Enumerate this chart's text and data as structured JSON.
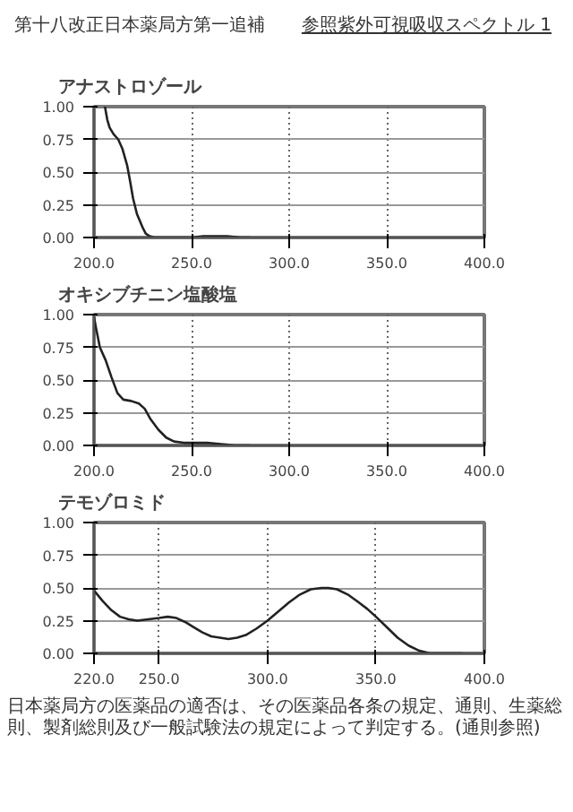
{
  "chart_data": [
    {
      "type": "line",
      "title": "アナストロゾール",
      "annotations": [
        "第十八改正日本薬局方第一追補",
        "参照紫外可視吸収スペクトル 1"
      ],
      "x": [
        205.6,
        206.8,
        208,
        210,
        212.4,
        214.5,
        217,
        218.5,
        220,
        222,
        224.8,
        226.5,
        228.5,
        231,
        240,
        250,
        256,
        262,
        268,
        275,
        280
      ],
      "series": [
        {
          "color": "#222222",
          "values": [
            1.0,
            0.9,
            0.84,
            0.79,
            0.75,
            0.68,
            0.55,
            0.43,
            0.3,
            0.18,
            0.08,
            0.03,
            0.01,
            0.0,
            0.0,
            0.0,
            0.01,
            0.01,
            0.01,
            0.0,
            0.0
          ]
        }
      ],
      "xlim": [
        200,
        400
      ],
      "ylim": [
        0,
        1
      ],
      "xticks": [
        {
          "value": 200,
          "label": "200.0"
        },
        {
          "value": 250,
          "label": "250.0"
        },
        {
          "value": 300,
          "label": "300.0"
        },
        {
          "value": 350,
          "label": "350.0"
        },
        {
          "value": 400,
          "label": "400.0"
        }
      ],
      "yticks": [
        {
          "value": 0,
          "label": "0.00"
        },
        {
          "value": 0.25,
          "label": "0.25"
        },
        {
          "value": 0.5,
          "label": "0.50"
        },
        {
          "value": 0.75,
          "label": "0.75"
        },
        {
          "value": 1,
          "label": "1.00"
        }
      ],
      "grid": true
    },
    {
      "type": "line",
      "title": "オキシブチニン塩酸塩",
      "x": [
        200,
        201,
        203,
        206,
        209,
        212,
        215,
        219,
        223,
        226,
        229,
        233,
        237,
        241,
        246,
        252,
        258,
        265,
        272,
        280
      ],
      "series": [
        {
          "color": "#222222",
          "values": [
            0.98,
            0.9,
            0.75,
            0.65,
            0.52,
            0.4,
            0.35,
            0.34,
            0.32,
            0.28,
            0.2,
            0.12,
            0.06,
            0.03,
            0.02,
            0.02,
            0.02,
            0.01,
            0.0,
            0.0
          ]
        }
      ],
      "xlim": [
        200,
        400
      ],
      "ylim": [
        0,
        1
      ],
      "xticks": [
        {
          "value": 200,
          "label": "200.0"
        },
        {
          "value": 250,
          "label": "250.0"
        },
        {
          "value": 300,
          "label": "300.0"
        },
        {
          "value": 350,
          "label": "350.0"
        },
        {
          "value": 400,
          "label": "400.0"
        }
      ],
      "yticks": [
        {
          "value": 0,
          "label": "0.00"
        },
        {
          "value": 0.25,
          "label": "0.25"
        },
        {
          "value": 0.5,
          "label": "0.50"
        },
        {
          "value": 0.75,
          "label": "0.75"
        },
        {
          "value": 1,
          "label": "1.00"
        }
      ],
      "grid": true
    },
    {
      "type": "line",
      "title": "テモゾロミド",
      "annotations": [
        "日本薬局方の医薬品の適否は、その医薬品各条の規定、通則、生薬総則、製剤総則及び一般試験法の規定によって判定する。(通則参照)"
      ],
      "x": [
        220,
        224,
        228,
        232,
        236,
        240,
        245,
        250,
        254,
        258,
        262,
        266,
        270,
        274,
        278,
        282,
        286,
        290,
        295,
        300,
        305,
        310,
        315,
        320,
        325,
        328,
        332,
        337,
        342,
        346,
        350,
        355,
        360,
        365,
        370,
        375,
        380,
        390
      ],
      "series": [
        {
          "color": "#222222",
          "values": [
            0.48,
            0.4,
            0.33,
            0.28,
            0.26,
            0.25,
            0.26,
            0.27,
            0.28,
            0.27,
            0.24,
            0.2,
            0.16,
            0.13,
            0.12,
            0.11,
            0.12,
            0.14,
            0.19,
            0.25,
            0.32,
            0.39,
            0.45,
            0.49,
            0.5,
            0.5,
            0.49,
            0.45,
            0.39,
            0.34,
            0.28,
            0.2,
            0.12,
            0.06,
            0.02,
            0.0,
            0.0,
            0.0
          ]
        }
      ],
      "xlim": [
        220,
        400
      ],
      "ylim": [
        0,
        1
      ],
      "xticks": [
        {
          "value": 220,
          "label": "220.0"
        },
        {
          "value": 250,
          "label": "250.0"
        },
        {
          "value": 300,
          "label": "300.0"
        },
        {
          "value": 350,
          "label": "350.0"
        },
        {
          "value": 400,
          "label": "400.0"
        }
      ],
      "yticks": [
        {
          "value": 0,
          "label": "0.00"
        },
        {
          "value": 0.25,
          "label": "0.25"
        },
        {
          "value": 0.5,
          "label": "0.50"
        },
        {
          "value": 0.75,
          "label": "0.75"
        },
        {
          "value": 1,
          "label": "1.00"
        }
      ],
      "grid": true
    }
  ]
}
